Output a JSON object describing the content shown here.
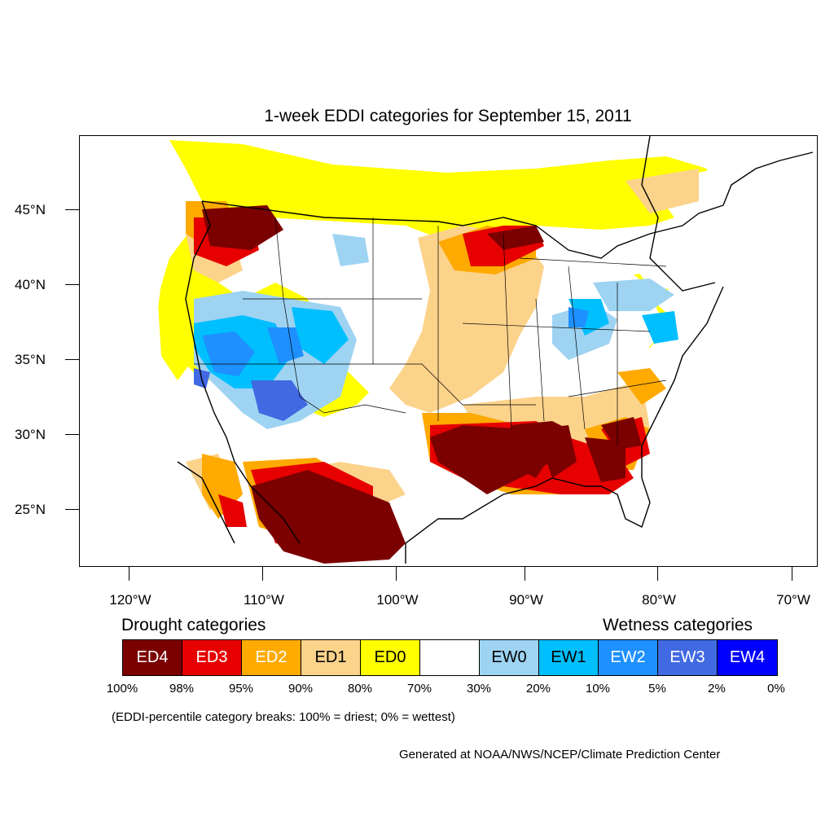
{
  "title": "1-week EDDI categories for September 15, 2011",
  "lat_labels": [
    "45°N",
    "40°N",
    "35°N",
    "30°N",
    "25°N"
  ],
  "lon_labels": [
    "120°W",
    "110°W",
    "100°W",
    "90°W",
    "80°W",
    "70°W"
  ],
  "legend": {
    "drought_heading": "Drought categories",
    "wetness_heading": "Wetness categories",
    "categories": [
      {
        "label": "ED4",
        "color": "#7b0000",
        "text_color": "#ffffff"
      },
      {
        "label": "ED3",
        "color": "#e60000",
        "text_color": "#ffffff"
      },
      {
        "label": "ED2",
        "color": "#ffaa00",
        "text_color": "#ffffff"
      },
      {
        "label": "ED1",
        "color": "#fcd38b",
        "text_color": "#000000"
      },
      {
        "label": "ED0",
        "color": "#ffff00",
        "text_color": "#000000"
      },
      {
        "label": "",
        "color": "#ffffff",
        "text_color": "#000000"
      },
      {
        "label": "EW0",
        "color": "#9ed3f2",
        "text_color": "#000000"
      },
      {
        "label": "EW1",
        "color": "#00bfff",
        "text_color": "#000000"
      },
      {
        "label": "EW2",
        "color": "#1e90ff",
        "text_color": "#ffffff"
      },
      {
        "label": "EW3",
        "color": "#4169e1",
        "text_color": "#ffffff"
      },
      {
        "label": "EW4",
        "color": "#0000ff",
        "text_color": "#ffffff"
      }
    ],
    "breaks": [
      "100%",
      "98%",
      "95%",
      "90%",
      "80%",
      "70%",
      "30%",
      "20%",
      "10%",
      "5%",
      "2%",
      "0%"
    ]
  },
  "note": "(EDDI-percentile category breaks: 100% = driest; 0% = wettest)",
  "credit": "Generated at NOAA/NWS/NCEP/Climate Prediction Center"
}
